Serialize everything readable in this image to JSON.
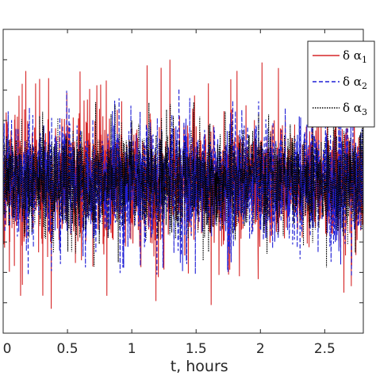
{
  "chart_data": {
    "type": "line",
    "title": "",
    "xlabel": "t, hours",
    "ylabel": "",
    "xlim": [
      0,
      2.8
    ],
    "ylim": [
      -2.5,
      2.5
    ],
    "xticks": [
      0,
      0.5,
      1,
      1.5,
      2,
      2.5
    ],
    "xtick_labels": [
      "0",
      "0.5",
      "1",
      "1.5",
      "2",
      "2.5"
    ],
    "yticks": [
      -2.5,
      -2,
      -1.5,
      -1,
      -0.5,
      0,
      0.5,
      1,
      1.5,
      2,
      2.5
    ],
    "grid": false,
    "legend_position": "top-right",
    "series": [
      {
        "name": "δ α",
        "subscript": "1",
        "color": "#d62728",
        "style": "solid",
        "amplitude": 0.65,
        "spike_max": 2.0,
        "spike_min": -2.1
      },
      {
        "name": "δ α",
        "subscript": "2",
        "color": "#1f1fd6",
        "style": "dashed",
        "amplitude": 0.65,
        "spike_max": 1.6,
        "spike_min": -1.6
      },
      {
        "name": "δ α",
        "subscript": "3",
        "color": "#000000",
        "style": "dotted",
        "amplitude": 0.55,
        "spike_max": 1.3,
        "spike_min": -1.5
      }
    ]
  }
}
